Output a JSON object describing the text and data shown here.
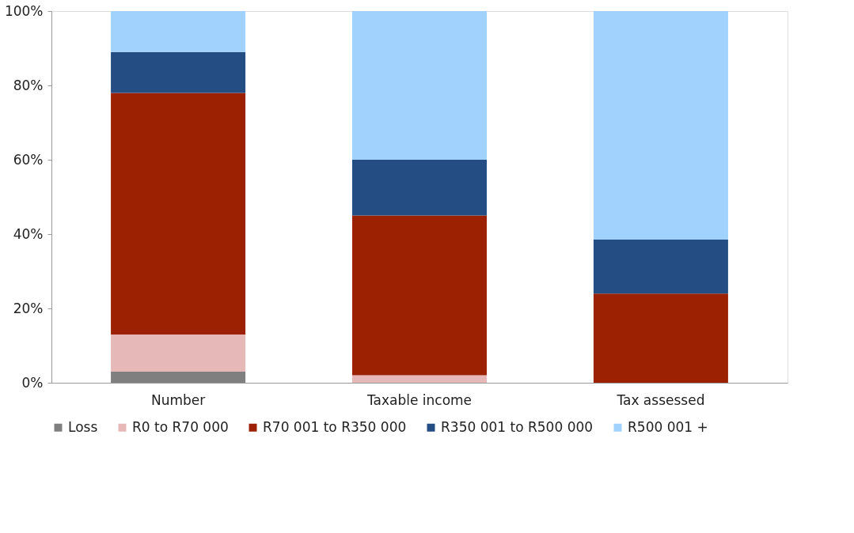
{
  "chart_data": {
    "type": "bar",
    "stacked": true,
    "categories": [
      "Number",
      "Taxable income",
      "Tax assessed"
    ],
    "series": [
      {
        "name": "Loss",
        "color": "#7f7f7f",
        "values": [
          3,
          0,
          0
        ]
      },
      {
        "name": "R0 to R70 000",
        "color": "#e6b9b8",
        "values": [
          10,
          2,
          0
        ]
      },
      {
        "name": "R70 001 to R350 000",
        "color": "#9b2102",
        "values": [
          65,
          43,
          24
        ]
      },
      {
        "name": "R350 001 to R500 000",
        "color": "#244d83",
        "values": [
          11,
          15,
          14.5
        ]
      },
      {
        "name": "R500 001 +",
        "color": "#a0d2fd",
        "values": [
          11,
          40,
          61.5
        ]
      }
    ],
    "ylim": [
      0,
      100
    ],
    "yticks": [
      {
        "value": 0,
        "label": "0%"
      },
      {
        "value": 20,
        "label": "20%"
      },
      {
        "value": 40,
        "label": "40%"
      },
      {
        "value": 60,
        "label": "60%"
      },
      {
        "value": 80,
        "label": "80%"
      },
      {
        "value": 100,
        "label": "100%"
      }
    ],
    "grid": false,
    "legend": "bottom"
  }
}
